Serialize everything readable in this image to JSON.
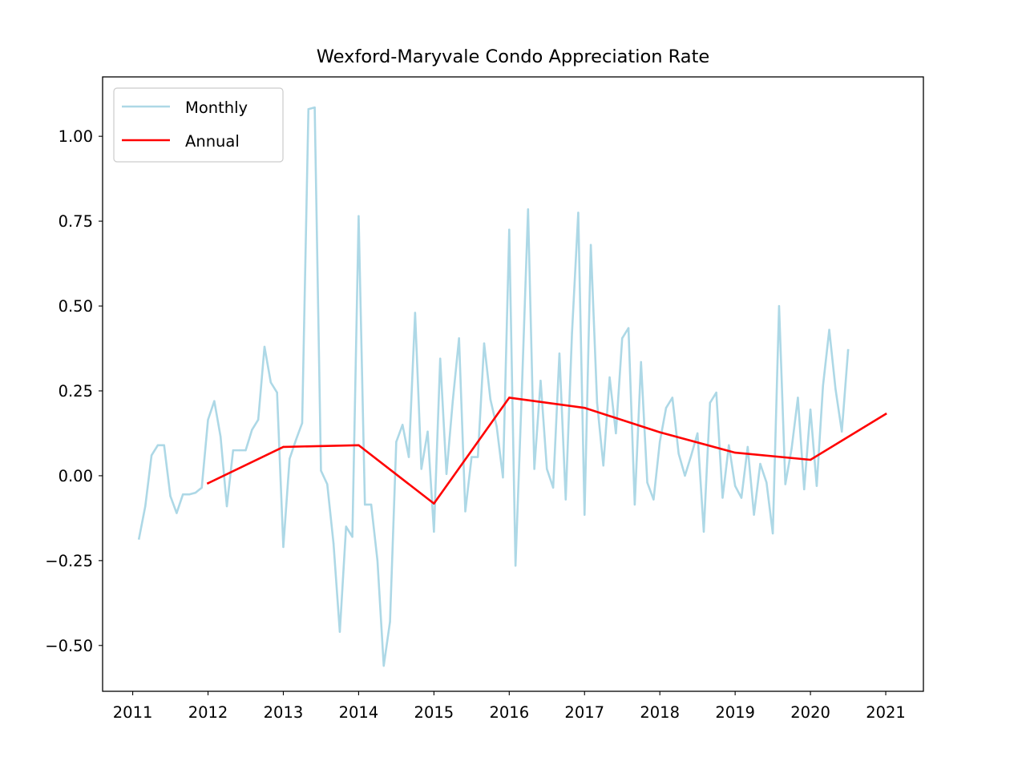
{
  "chart_data": {
    "type": "line",
    "title": "Wexford-Maryvale Condo Appreciation Rate",
    "xlabel": "",
    "ylabel": "",
    "xlim": [
      2010.6,
      2021.5
    ],
    "ylim": [
      -0.635,
      1.175
    ],
    "xticks": [
      2011,
      2012,
      2013,
      2014,
      2015,
      2016,
      2017,
      2018,
      2019,
      2020,
      2021
    ],
    "xtick_labels": [
      "2011",
      "2012",
      "2013",
      "2014",
      "2015",
      "2016",
      "2017",
      "2018",
      "2019",
      "2020",
      "2021"
    ],
    "yticks": [
      -0.5,
      -0.25,
      0.0,
      0.25,
      0.5,
      0.75,
      1.0
    ],
    "ytick_labels": [
      "−0.50",
      "−0.25",
      "0.00",
      "0.25",
      "0.50",
      "0.75",
      "1.00"
    ],
    "grid": false,
    "legend_position": "upper-left",
    "series": [
      {
        "name": "Monthly",
        "color": "#add8e6",
        "x": [
          "2011-02",
          "2011-03",
          "2011-04",
          "2011-05",
          "2011-06",
          "2011-07",
          "2011-08",
          "2011-09",
          "2011-10",
          "2011-11",
          "2011-12",
          "2012-01",
          "2012-02",
          "2012-03",
          "2012-04",
          "2012-05",
          "2012-06",
          "2012-07",
          "2012-08",
          "2012-09",
          "2012-10",
          "2012-11",
          "2012-12",
          "2013-01",
          "2013-02",
          "2013-03",
          "2013-04",
          "2013-05",
          "2013-06",
          "2013-07",
          "2013-08",
          "2013-09",
          "2013-10",
          "2013-11",
          "2013-12",
          "2014-01",
          "2014-02",
          "2014-03",
          "2014-04",
          "2014-05",
          "2014-06",
          "2014-07",
          "2014-08",
          "2014-09",
          "2014-10",
          "2014-11",
          "2014-12",
          "2015-01",
          "2015-02",
          "2015-03",
          "2015-04",
          "2015-05",
          "2015-06",
          "2015-07",
          "2015-08",
          "2015-09",
          "2015-10",
          "2015-11",
          "2015-12",
          "2016-01",
          "2016-02",
          "2016-03",
          "2016-04",
          "2016-05",
          "2016-06",
          "2016-07",
          "2016-08",
          "2016-09",
          "2016-10",
          "2016-11",
          "2016-12",
          "2017-01",
          "2017-02",
          "2017-03",
          "2017-04",
          "2017-05",
          "2017-06",
          "2017-07",
          "2017-08",
          "2017-09",
          "2017-10",
          "2017-11",
          "2017-12",
          "2018-01",
          "2018-02",
          "2018-03",
          "2018-04",
          "2018-05",
          "2018-06",
          "2018-07",
          "2018-08",
          "2018-09",
          "2018-10",
          "2018-11",
          "2018-12",
          "2019-01",
          "2019-02",
          "2019-03",
          "2019-04",
          "2019-05",
          "2019-06",
          "2019-07",
          "2019-08",
          "2019-09",
          "2019-10",
          "2019-11",
          "2019-12",
          "2020-01",
          "2020-02",
          "2020-03",
          "2020-04",
          "2020-05",
          "2020-06",
          "2020-07"
        ],
        "values": [
          -0.185,
          -0.09,
          0.06,
          0.09,
          0.09,
          -0.06,
          -0.11,
          -0.055,
          -0.055,
          -0.05,
          -0.035,
          0.165,
          0.22,
          0.115,
          -0.09,
          0.075,
          0.075,
          0.075,
          0.135,
          0.165,
          0.38,
          0.275,
          0.245,
          -0.21,
          0.05,
          0.105,
          0.155,
          1.08,
          1.085,
          0.015,
          -0.025,
          -0.2,
          -0.46,
          -0.15,
          -0.18,
          0.765,
          -0.085,
          -0.085,
          -0.25,
          -0.56,
          -0.43,
          0.1,
          0.15,
          0.055,
          0.48,
          0.02,
          0.13,
          -0.165,
          0.345,
          0.005,
          0.22,
          0.405,
          -0.105,
          0.055,
          0.055,
          0.39,
          0.225,
          0.145,
          -0.005,
          0.725,
          -0.265,
          0.245,
          0.785,
          0.02,
          0.28,
          0.02,
          -0.035,
          0.36,
          -0.07,
          0.42,
          0.775,
          -0.115,
          0.68,
          0.215,
          0.03,
          0.29,
          0.125,
          0.405,
          0.435,
          -0.085,
          0.335,
          -0.02,
          -0.07,
          0.1,
          0.2,
          0.23,
          0.065,
          0.0,
          0.06,
          0.125,
          -0.165,
          0.215,
          0.245,
          -0.065,
          0.09,
          -0.03,
          -0.065,
          0.085,
          -0.115,
          0.035,
          -0.02,
          -0.17,
          0.5,
          -0.025,
          0.08,
          0.23,
          -0.04,
          0.195,
          -0.03,
          0.265,
          0.43,
          0.255,
          0.13,
          0.37
        ]
      },
      {
        "name": "Annual",
        "color": "#ff0000",
        "x": [
          "2012-01",
          "2013-01",
          "2014-01",
          "2015-01",
          "2016-01",
          "2017-01",
          "2018-01",
          "2019-01",
          "2020-01",
          "2021-01"
        ],
        "values": [
          -0.022,
          0.085,
          0.09,
          -0.082,
          0.23,
          0.2,
          0.128,
          0.068,
          0.047,
          0.182
        ]
      }
    ]
  }
}
